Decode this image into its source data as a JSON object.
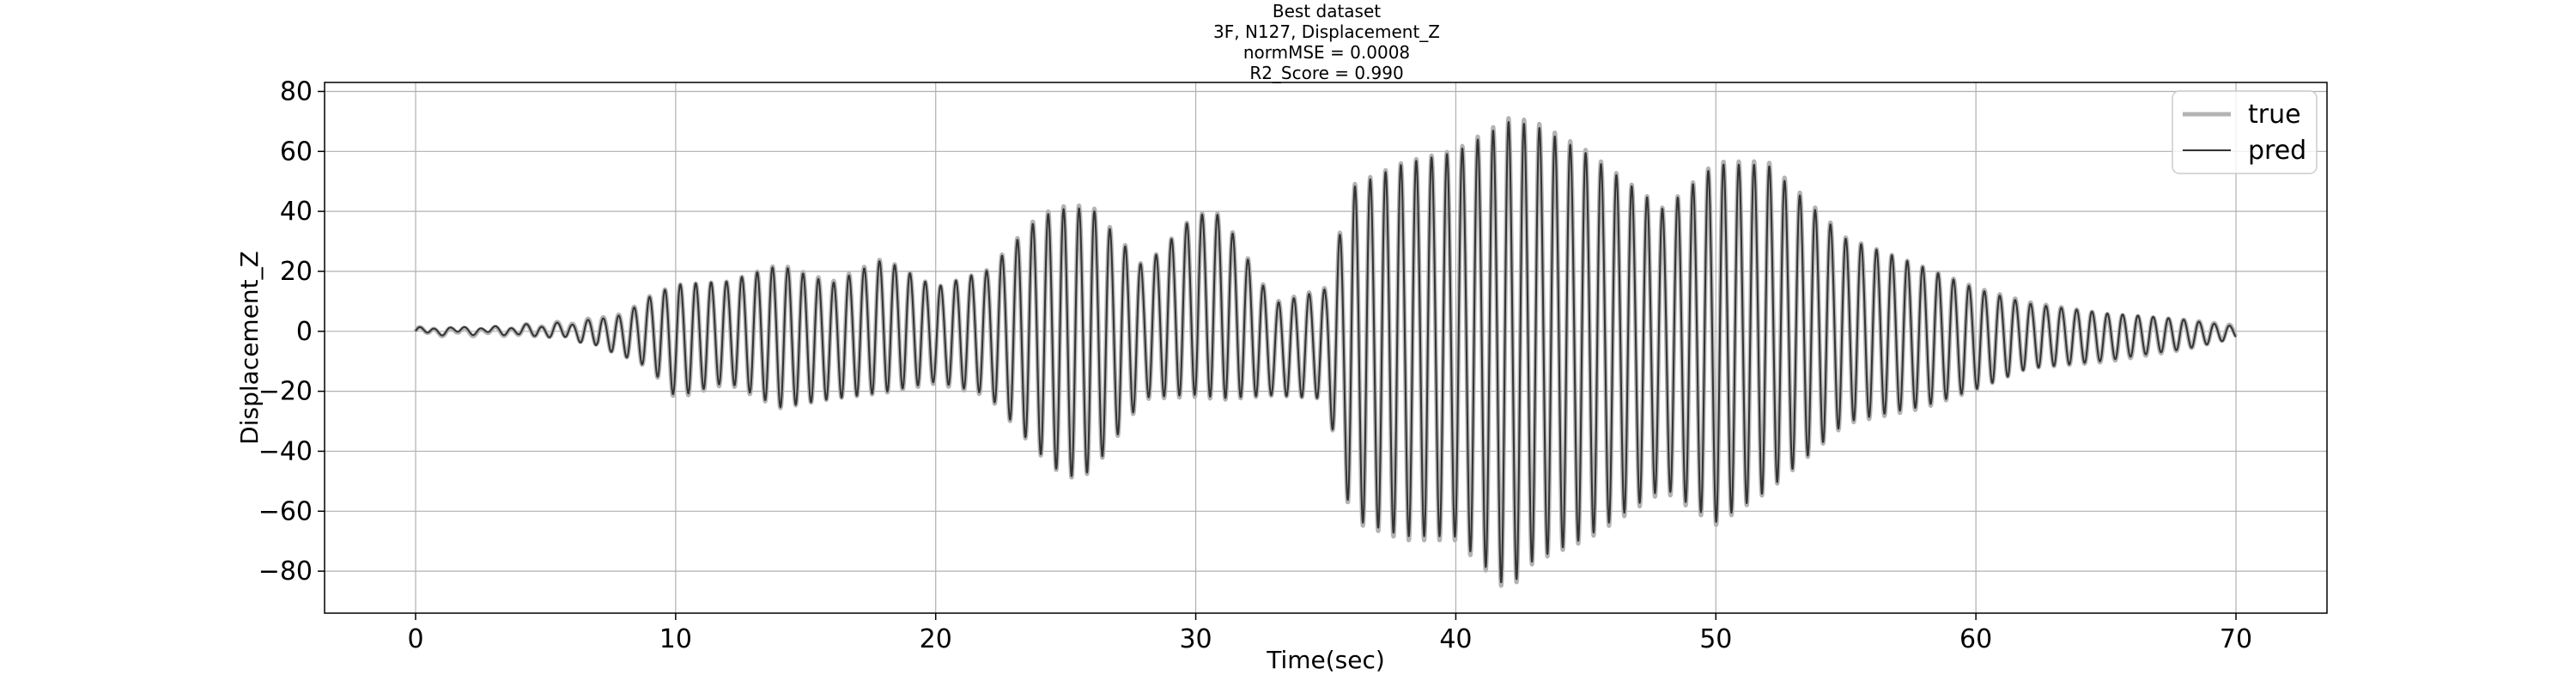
{
  "chart_data": {
    "type": "line",
    "title_lines": [
      "Best dataset",
      "3F, N127, Displacement_Z",
      "normMSE = 0.0008",
      "R2_Score = 0.990"
    ],
    "xlabel": "Time(sec)",
    "ylabel": "Displacement_Z",
    "xlim": [
      -3.5,
      73.5
    ],
    "ylim": [
      -94,
      83
    ],
    "xticks": [
      0,
      10,
      20,
      30,
      40,
      50,
      60,
      70
    ],
    "yticks": [
      -80,
      -60,
      -40,
      -20,
      0,
      20,
      40,
      60,
      80
    ],
    "xtick_labels": [
      "0",
      "10",
      "20",
      "30",
      "40",
      "50",
      "60",
      "70"
    ],
    "ytick_labels": [
      "−80",
      "−60",
      "−40",
      "−20",
      "0",
      "20",
      "40",
      "60",
      "80"
    ],
    "grid": true,
    "legend_position": "top-right",
    "series": [
      {
        "name": "true",
        "color": "#b3b3b3",
        "style": "thick-light"
      },
      {
        "name": "pred",
        "color": "#333333",
        "style": "thin-dark"
      }
    ],
    "envelope": {
      "description": "approximate amplitude envelope of the oscillation (peak value, trough value) per segment",
      "t": [
        0,
        3,
        6,
        8,
        9,
        10,
        12,
        14,
        16,
        18,
        20,
        22,
        24,
        25,
        26,
        28,
        30,
        31,
        33,
        35,
        36,
        38,
        40,
        42,
        43,
        45,
        48,
        50,
        52,
        55,
        58,
        60,
        62,
        65,
        68,
        70
      ],
      "peak": [
        1,
        1,
        3,
        6,
        12,
        16,
        17,
        23,
        17,
        25,
        15,
        21,
        40,
        43,
        43,
        22,
        40,
        40,
        10,
        15,
        50,
        58,
        62,
        73,
        72,
        62,
        42,
        58,
        58,
        32,
        22,
        15,
        10,
        6,
        4,
        2
      ],
      "trough": [
        -1,
        -1,
        -2,
        -8,
        -12,
        -22,
        -17,
        -25,
        -22,
        -20,
        -17,
        -21,
        -40,
        -48,
        -46,
        -22,
        -21,
        -22,
        -21,
        -22,
        -62,
        -68,
        -68,
        -85,
        -75,
        -68,
        -52,
        -63,
        -52,
        -30,
        -25,
        -19,
        -12,
        -10,
        -6,
        -2
      ]
    },
    "dominant_period_sec": 0.59,
    "pred_offset_at_end": 0
  }
}
